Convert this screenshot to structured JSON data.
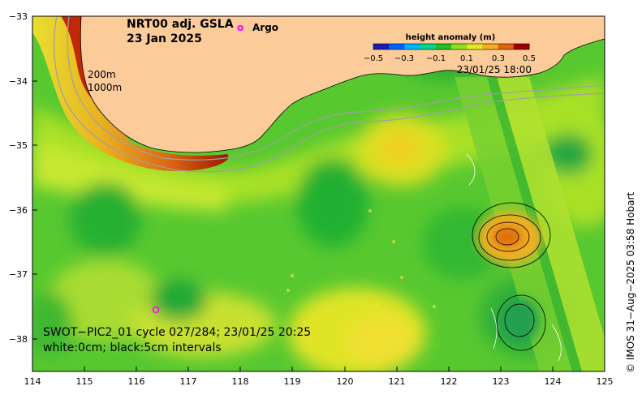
{
  "title": {
    "product": "NRT00 adj. GSLA",
    "date": "23 Jan 2025"
  },
  "legend": {
    "argo_symbol": "o",
    "argo_label": "Argo",
    "argo_color": "#ff00ff"
  },
  "colorbar": {
    "label": "height anomaly (m)",
    "ticks": [
      "−0.5",
      "−0.3",
      "−0.1",
      "0.1",
      "0.3",
      "0.5"
    ],
    "colors": [
      "#1a1ab4",
      "#0060ff",
      "#00b4ff",
      "#00d890",
      "#20c020",
      "#90e020",
      "#e8e820",
      "#f0b020",
      "#e06010",
      "#a00000"
    ],
    "pass_time": "23/01/25 18:00"
  },
  "isobaths": {
    "label_200": "200m",
    "label_1000": "1000m"
  },
  "swot": {
    "line1": "SWOT−PIC2_01 cycle 027/284; 23/01/25 20:25",
    "line2": "white:0cm; black:5cm intervals"
  },
  "credit": "© IMOS 31−Aug−2025 03:58 Hobart",
  "axes": {
    "x_ticks": [
      "114",
      "115",
      "116",
      "117",
      "118",
      "119",
      "120",
      "121",
      "122",
      "123",
      "124",
      "125"
    ],
    "y_ticks": [
      "−33",
      "−34",
      "−35",
      "−36",
      "−37",
      "−38"
    ],
    "x_range": [
      114,
      125
    ],
    "y_range": [
      -38.55,
      -33
    ]
  },
  "colors": {
    "land": "#fbcb9a",
    "ocean_base": "#50c830",
    "isobath": "#a0a0a0"
  }
}
